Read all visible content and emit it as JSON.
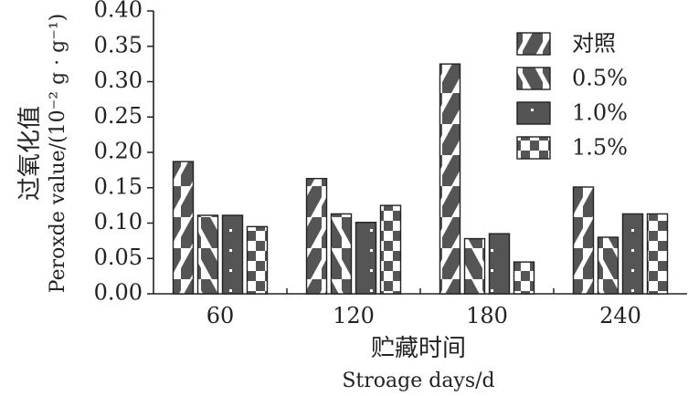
{
  "chart_data": {
    "type": "bar",
    "categories": [
      "60",
      "120",
      "180",
      "240"
    ],
    "series": [
      {
        "name": "对照",
        "values": [
          0.187,
          0.163,
          0.325,
          0.151
        ],
        "pattern": "diagonal-right"
      },
      {
        "name": "0.5%",
        "values": [
          0.111,
          0.113,
          0.078,
          0.08
        ],
        "pattern": "diagonal-left"
      },
      {
        "name": "1.0%",
        "values": [
          0.111,
          0.101,
          0.085,
          0.113
        ],
        "pattern": "dotted-dark"
      },
      {
        "name": "1.5%",
        "values": [
          0.095,
          0.125,
          0.045,
          0.113
        ],
        "pattern": "checker"
      }
    ],
    "xlabel_cn": "贮藏时间",
    "xlabel_en": "Stroage days/d",
    "ylabel_cn": "过氧化值",
    "ylabel_en": "Peroxde value/(10⁻² g · g⁻¹)",
    "ylim": [
      0,
      0.4
    ],
    "yticks": [
      "0.00",
      "0.05",
      "0.10",
      "0.15",
      "0.20",
      "0.25",
      "0.30",
      "0.35",
      "0.40"
    ],
    "legend_position": "top-right",
    "grid": false,
    "colors": {
      "ink": "#222222",
      "fill_dark": "#555555",
      "fill_light": "#ffffff"
    }
  }
}
